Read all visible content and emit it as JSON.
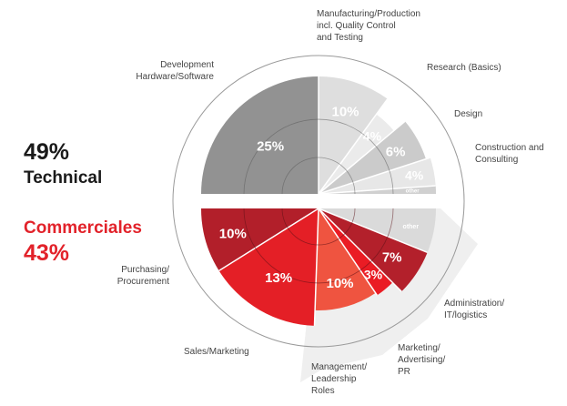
{
  "summary": {
    "technical": {
      "percent": "49%",
      "label": "Technical",
      "color": "#1a1a1a"
    },
    "commercial": {
      "percent": "43%",
      "label": "Commerciales",
      "color": "#e2222a"
    }
  },
  "chart_data": {
    "type": "pie",
    "title": "",
    "groups": [
      {
        "name": "Technical",
        "slices": [
          {
            "label": "Development\nHardware/Software",
            "value": 25,
            "value_label": "25%",
            "color": "#929292"
          },
          {
            "label": "Manufacturing/Production\nincl. Quality Control\nand Testing",
            "value": 10,
            "value_label": "10%",
            "color": "#dedede"
          },
          {
            "label": "Research (Basics)",
            "value": 4,
            "value_label": "4%",
            "color": "#ebebeb"
          },
          {
            "label": "Design",
            "value": 6,
            "value_label": "6%",
            "color": "#cbcbcb"
          },
          {
            "label": "Construction and\nConsulting",
            "value": 4,
            "value_label": "4%",
            "color": "#e7e7e7"
          },
          {
            "label": "",
            "value": 1,
            "value_label": "other",
            "color": "#d0d0d0"
          }
        ]
      },
      {
        "name": "Commerciales",
        "slices": [
          {
            "label": "",
            "value": 4,
            "value_label": "other",
            "color": "#dadada"
          },
          {
            "label": "Administration/\nIT/logistics",
            "value": 7,
            "value_label": "7%",
            "color": "#b3202b"
          },
          {
            "label": "Marketing/\nAdvertising/\nPR",
            "value": 3,
            "value_label": "3%",
            "color": "#ea1c24"
          },
          {
            "label": "Management/\nLeadership\nRoles",
            "value": 10,
            "value_label": "10%",
            "color": "#ef5440"
          },
          {
            "label": "Sales/Marketing",
            "value": 13,
            "value_label": "13%",
            "color": "#e41f26"
          },
          {
            "label": "Purchasing/\nProcurement",
            "value": 10,
            "value_label": "10%",
            "color": "#b21f2a"
          }
        ]
      }
    ]
  }
}
